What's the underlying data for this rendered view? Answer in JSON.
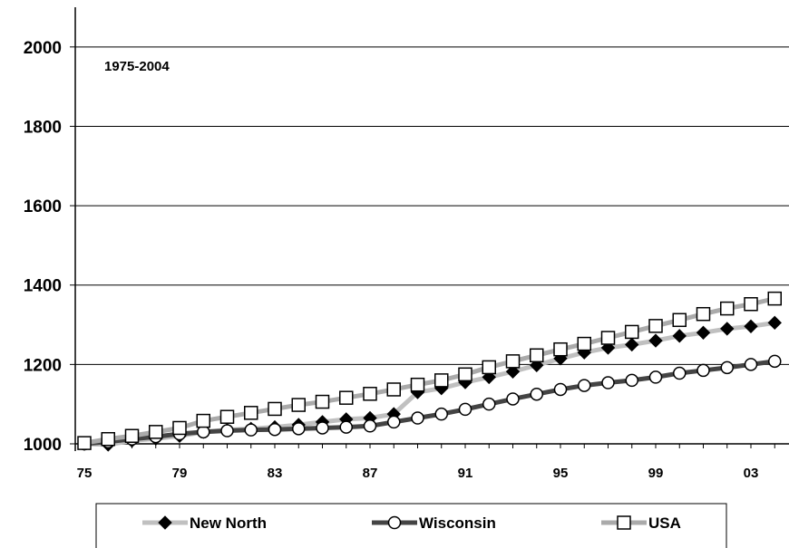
{
  "chart_data": {
    "type": "line",
    "subtitle": "1975-2004",
    "x": [
      1975,
      1976,
      1977,
      1978,
      1979,
      1980,
      1981,
      1982,
      1983,
      1984,
      1985,
      1986,
      1987,
      1988,
      1989,
      1990,
      1991,
      1992,
      1993,
      1994,
      1995,
      1996,
      1997,
      1998,
      1999,
      2000,
      2001,
      2002,
      2003,
      2004
    ],
    "x_tick_labels": [
      "75",
      "79",
      "83",
      "87",
      "91",
      "95",
      "99",
      "03"
    ],
    "x_tick_values": [
      1975,
      1979,
      1983,
      1987,
      1991,
      1995,
      1999,
      2003
    ],
    "y_ticks": [
      1000,
      1200,
      1400,
      1600,
      1800,
      2000
    ],
    "ylim": [
      1000,
      2100
    ],
    "grid": "horizontal",
    "legend_position": "bottom",
    "series": [
      {
        "name": "New North",
        "color": "#c0c0c0",
        "marker": "diamond-filled",
        "values": [
          1000,
          998,
          1008,
          1013,
          1020,
          1030,
          1035,
          1038,
          1042,
          1048,
          1055,
          1062,
          1065,
          1075,
          1130,
          1140,
          1155,
          1168,
          1182,
          1198,
          1215,
          1230,
          1242,
          1250,
          1260,
          1272,
          1280,
          1290,
          1296,
          1305
        ]
      },
      {
        "name": "Wisconsin",
        "color": "#444444",
        "marker": "circle-open",
        "values": [
          1000,
          1005,
          1012,
          1018,
          1025,
          1030,
          1033,
          1035,
          1036,
          1038,
          1040,
          1042,
          1045,
          1055,
          1065,
          1075,
          1087,
          1100,
          1113,
          1125,
          1137,
          1147,
          1154,
          1160,
          1168,
          1178,
          1185,
          1192,
          1200,
          1208
        ]
      },
      {
        "name": "USA",
        "color": "#aaaaaa",
        "marker": "square-open",
        "values": [
          1002,
          1012,
          1020,
          1030,
          1040,
          1058,
          1068,
          1078,
          1088,
          1098,
          1106,
          1116,
          1126,
          1137,
          1149,
          1160,
          1175,
          1193,
          1208,
          1223,
          1238,
          1252,
          1267,
          1282,
          1297,
          1312,
          1327,
          1341,
          1352,
          1366
        ]
      }
    ]
  }
}
